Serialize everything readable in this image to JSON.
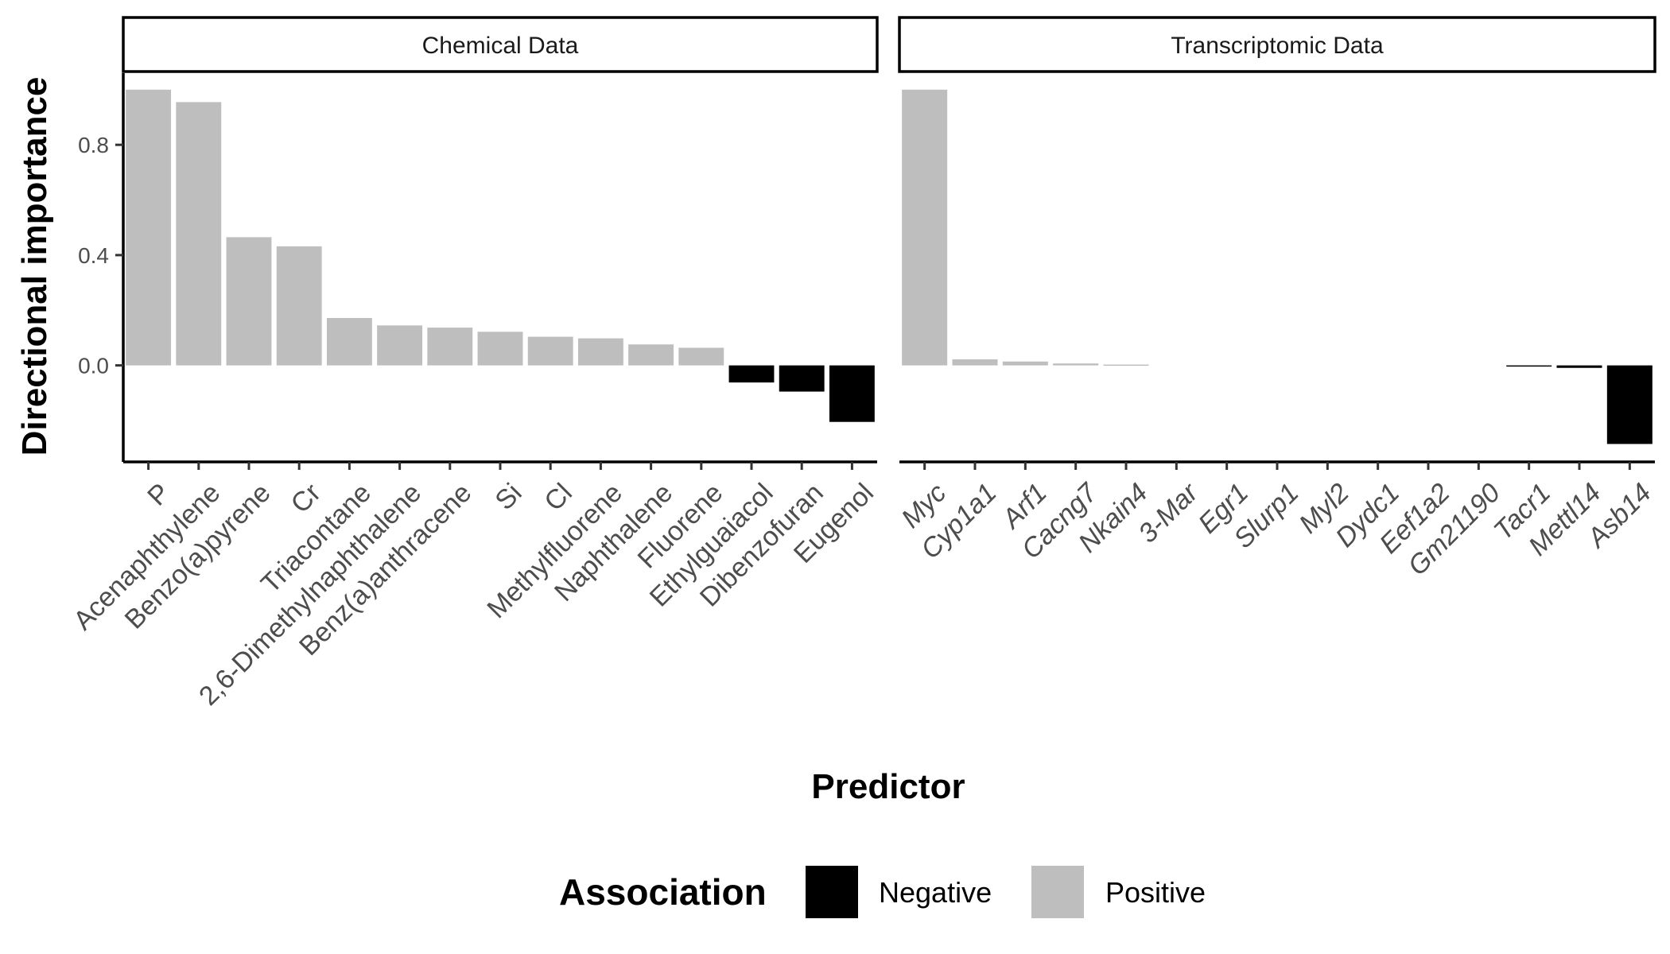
{
  "chart_data": {
    "type": "bar",
    "ylabel": "Directional importance",
    "xlabel": "Predictor",
    "ylim": [
      -0.35,
      1.06
    ],
    "yticks": [
      0.0,
      0.4,
      0.8
    ],
    "ytick_labels": [
      "0.0",
      "0.4",
      "0.8"
    ],
    "grid": false,
    "legend": {
      "title": "Association",
      "position": "bottom",
      "entries": [
        {
          "label": "Negative",
          "color": "#000000"
        },
        {
          "label": "Positive",
          "color": "#bebebe"
        }
      ]
    },
    "panels": [
      {
        "strip": "Chemical Data",
        "italic_labels": false,
        "categories": [
          "P",
          "Acenaphthylene",
          "Benzo(a)pyrene",
          "Cr",
          "Triacontane",
          "2,6-Dimethylnaphthalene",
          "Benz(a)anthracene",
          "Si",
          "Cl",
          "Methylfluorene",
          "Naphthalene",
          "Fluorene",
          "Ethylguaiacol",
          "Dibenzofuran",
          "Eugenol"
        ],
        "values": [
          1.0,
          0.955,
          0.465,
          0.432,
          0.172,
          0.145,
          0.137,
          0.122,
          0.104,
          0.098,
          0.076,
          0.064,
          -0.062,
          -0.095,
          -0.205
        ]
      },
      {
        "strip": "Transcriptomic Data",
        "italic_labels": true,
        "categories": [
          "Myc",
          "Cyp1a1",
          "Arf1",
          "Cacng7",
          "Nkain4",
          "3-Mar",
          "Egr1",
          "Slurp1",
          "Myl2",
          "Dydc1",
          "Eef1a2",
          "Gm21190",
          "Tacr1",
          "Mettl14",
          "Asb14"
        ],
        "values": [
          1.0,
          0.022,
          0.014,
          0.007,
          0.003,
          0.0,
          0.0,
          0.0,
          0.0,
          0.0,
          0.0,
          0.0,
          -0.004,
          -0.009,
          -0.285
        ]
      }
    ]
  }
}
